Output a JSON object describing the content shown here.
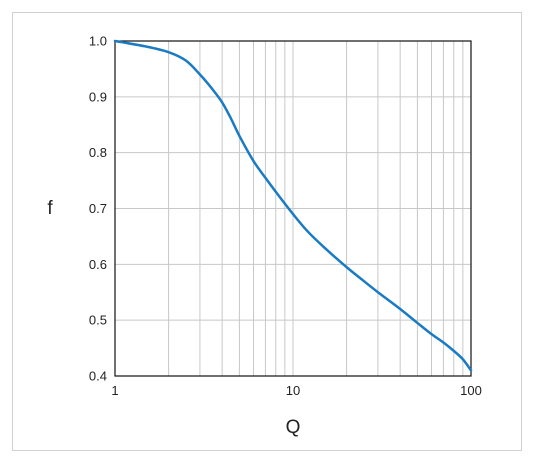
{
  "chart_data": {
    "type": "line",
    "xscale": "log",
    "xlim": [
      1,
      100
    ],
    "ylim": [
      0.4,
      1.0
    ],
    "xlabel": "Q",
    "ylabel": "f",
    "x_ticks": [
      "1",
      "10",
      "100"
    ],
    "y_ticks": [
      "0.4",
      "0.5",
      "0.6",
      "0.7",
      "0.8",
      "0.9",
      "1.0"
    ],
    "grid": true,
    "line_color": "#1a7bc4",
    "series": [
      {
        "x": [
          1,
          1.5,
          2,
          2.5,
          3,
          3.5,
          4,
          4.5,
          5,
          6,
          7,
          8,
          10,
          12,
          15,
          20,
          25,
          30,
          40,
          50,
          60,
          70,
          80,
          90,
          100
        ],
        "y": [
          1.0,
          0.99,
          0.98,
          0.965,
          0.94,
          0.915,
          0.89,
          0.86,
          0.83,
          0.785,
          0.755,
          0.73,
          0.69,
          0.66,
          0.63,
          0.595,
          0.57,
          0.55,
          0.52,
          0.495,
          0.475,
          0.46,
          0.445,
          0.43,
          0.41
        ]
      }
    ]
  }
}
